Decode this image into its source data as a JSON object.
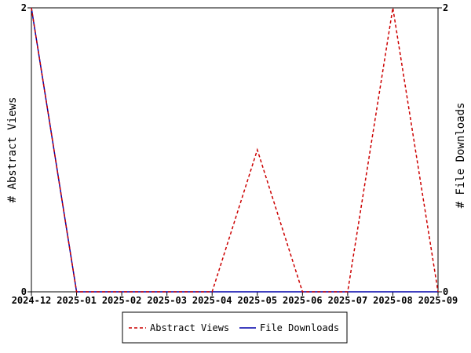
{
  "chart_data": {
    "type": "line",
    "x": [
      "2024-12",
      "2025-01",
      "2025-02",
      "2025-03",
      "2025-04",
      "2025-05",
      "2025-06",
      "2025-07",
      "2025-08",
      "2025-09"
    ],
    "series": [
      {
        "name": "Abstract Views",
        "values": [
          2,
          0,
          0,
          0,
          0,
          1,
          0,
          0,
          2,
          0
        ],
        "color": "#cc0000",
        "style": "dashed",
        "axis": "left"
      },
      {
        "name": "File Downloads",
        "values": [
          2,
          0,
          0,
          0,
          0,
          0,
          0,
          0,
          0,
          0
        ],
        "color": "#0000aa",
        "style": "solid",
        "axis": "right"
      }
    ],
    "ylabel": "# Abstract Views",
    "y2label": "# File Downloads",
    "ylim": [
      0,
      2
    ],
    "y2lim": [
      0,
      2
    ],
    "yticks": [
      "0",
      "2"
    ],
    "y2ticks": [
      "0",
      "2"
    ],
    "grid": false,
    "legend_position": "bottom"
  }
}
